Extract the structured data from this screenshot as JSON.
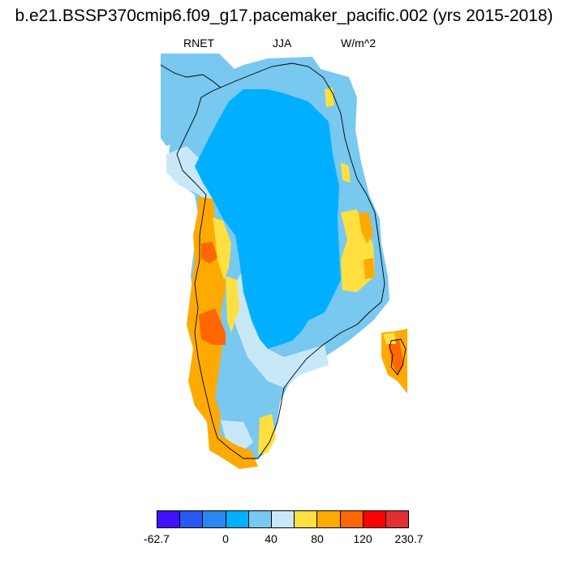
{
  "header": {
    "title": "b.e21.BSSP370cmip6.f09_g17.pacemaker_pacific.002 (yrs 2015-2018)",
    "variable": "RNET",
    "season": "JJA",
    "units": "W/m^2"
  },
  "map": {
    "colors": {
      "ice_interior": "#00b0ff",
      "light_blue": "#78c8f0",
      "pale_blue": "#c8e8f8",
      "yellow": "#ffe040",
      "orange": "#ffaa00",
      "dark_orange": "#ff6600",
      "coastline": "#000000"
    }
  },
  "colorbar": {
    "colors": [
      "#4010ff",
      "#2858f0",
      "#2888f0",
      "#00b0ff",
      "#78c8f0",
      "#c8e8f8",
      "#ffe040",
      "#ffaa00",
      "#ff6600",
      "#ff0000",
      "#e03030"
    ],
    "tick_labels": [
      "-62.7",
      "0",
      "40",
      "80",
      "120",
      "230.7"
    ]
  }
}
